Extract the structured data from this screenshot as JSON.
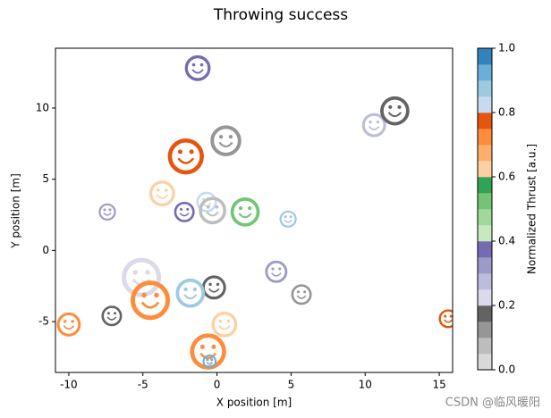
{
  "chart_data": {
    "type": "scatter",
    "title": "Throwing success",
    "x_label": "X position [m]",
    "y_label": "Y position [m]",
    "x": [
      -1.3,
      0.6,
      -2.1,
      10.6,
      12.0,
      -3.7,
      -7.4,
      -2.2,
      -0.7,
      -0.3,
      1.9,
      4.8,
      -5.1,
      4.0,
      -0.2,
      -1.8,
      -4.5,
      5.7,
      -7.1,
      0.5,
      -10.0,
      15.6,
      -0.6,
      -0.5
    ],
    "y": [
      12.8,
      7.7,
      6.6,
      8.8,
      9.8,
      4.0,
      2.7,
      2.7,
      3.4,
      2.8,
      2.7,
      2.2,
      -1.9,
      -1.5,
      -2.6,
      -3.0,
      -3.5,
      -3.1,
      -4.6,
      -5.2,
      -5.2,
      -4.8,
      -7.1,
      -7.8
    ],
    "sizes": [
      15,
      18,
      21,
      14,
      17,
      15,
      10,
      12,
      12,
      16,
      17,
      10,
      23,
      13,
      14,
      17,
      23,
      12,
      12,
      15,
      14,
      11,
      21,
      8
    ],
    "thrust": [
      0.38,
      0.1,
      0.78,
      0.28,
      0.15,
      0.62,
      0.33,
      0.38,
      0.83,
      0.05,
      0.53,
      0.85,
      0.23,
      0.32,
      0.18,
      0.87,
      0.72,
      0.12,
      0.17,
      0.63,
      0.73,
      0.76,
      0.73,
      0.93
    ],
    "xlim": [
      -10.9,
      15.9
    ],
    "ylim": [
      -8.57,
      14.2
    ],
    "xticks": [
      -10,
      -5,
      0,
      5,
      10,
      15
    ],
    "yticks": [
      -5,
      0,
      5,
      10
    ],
    "colorbar_label": "Normalized Thrust [a.u.]",
    "clim": [
      0,
      1
    ],
    "cticks": [
      {
        "value": 0,
        "label": "0.0"
      },
      {
        "value": 0.2,
        "label": "0.2"
      },
      {
        "value": 0.4,
        "label": "0.4"
      },
      {
        "value": 0.6,
        "label": "0.6"
      },
      {
        "value": 0.8,
        "label": "0.8"
      },
      {
        "value": 1,
        "label": "1.0"
      }
    ],
    "colormap": [
      "#d9d9d9",
      "#bdbdbd",
      "#969696",
      "#636363",
      "#dadaeb",
      "#bcbddc",
      "#9e9ac8",
      "#756bb1",
      "#c7e9c0",
      "#a1d99b",
      "#74c476",
      "#31a354",
      "#fdd0a2",
      "#fdae6b",
      "#fd8d3c",
      "#e6550d",
      "#c6dbef",
      "#9ecae1",
      "#6baed6",
      "#3182bd"
    ],
    "watermark": "CSDN @临风暖阳"
  }
}
